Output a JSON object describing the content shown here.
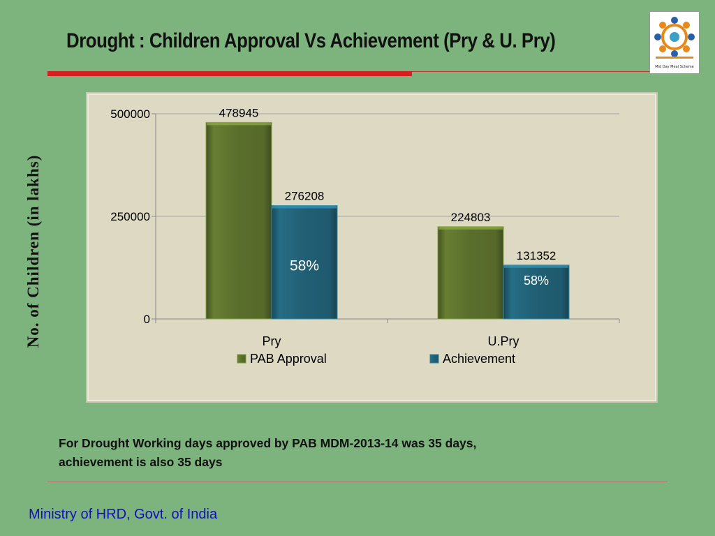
{
  "slide": {
    "title": "Drought  : Children Approval Vs Achievement (Pry & U. Pry)",
    "y_axis_title": "No. of Children (in lakhs)",
    "note_line1": "For Drought Working days approved by PAB MDM-2013-14 was 35 days,",
    "note_line2": "achievement is also 35 days",
    "footer": "Ministry of HRD, Govt. of India",
    "logo_text": "Mid Day Meal Scheme"
  },
  "colors": {
    "background": "#7db37d",
    "approval": "#5a6e2c",
    "achievement": "#215f74",
    "red_rule": "#d42020",
    "footer_text": "#1010c0"
  },
  "chart_data": {
    "type": "bar",
    "categories": [
      "Pry",
      "U.Pry"
    ],
    "series": [
      {
        "name": "PAB Approval",
        "values": [
          478945,
          224803
        ],
        "color": "#5a6e2c"
      },
      {
        "name": "Achievement",
        "values": [
          276208,
          131352
        ],
        "color": "#215f74",
        "annotations": [
          "58%",
          "58%"
        ]
      }
    ],
    "ylim": [
      0,
      500000
    ],
    "yticks": [
      0,
      250000,
      500000
    ],
    "grid": true,
    "legend": "bottom"
  }
}
